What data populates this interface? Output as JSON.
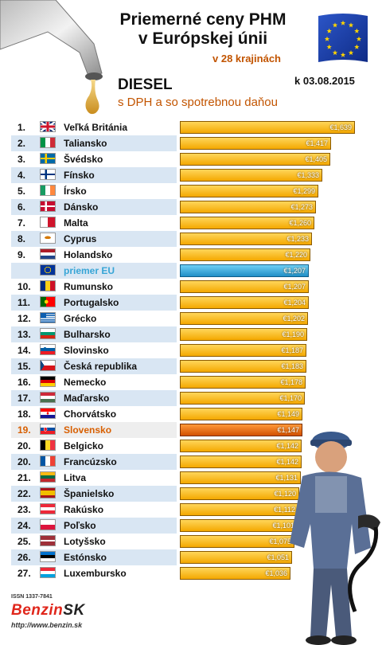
{
  "header": {
    "title_line1": "Priemerné ceny PHM",
    "title_line2": "v Európskej únii",
    "subtitle": "v 28 krajinách",
    "fuel": "DIESEL",
    "tax_note": "s DPH a so spotrebnou daňou",
    "date": "k 03.08.2015"
  },
  "footer": {
    "issn": "ISSN 1337-7841",
    "logo_part1": "Benzin",
    "logo_part2": "SK",
    "url": "http://www.benzin.sk"
  },
  "chart_data": {
    "type": "bar",
    "orientation": "horizontal",
    "currency": "€",
    "xlim": [
      0,
      1.7
    ],
    "rows": [
      {
        "rank": "1.",
        "name": "Veľká Británia",
        "value": 1.639,
        "label": "€1,639",
        "flag": "gb"
      },
      {
        "rank": "2.",
        "name": "Taliansko",
        "value": 1.417,
        "label": "€1,417",
        "flag": "it"
      },
      {
        "rank": "3.",
        "name": "Švédsko",
        "value": 1.405,
        "label": "€1,405",
        "flag": "se"
      },
      {
        "rank": "4.",
        "name": "Fínsko",
        "value": 1.333,
        "label": "€1,333",
        "flag": "fi"
      },
      {
        "rank": "5.",
        "name": "Írsko",
        "value": 1.299,
        "label": "€1,299",
        "flag": "ie"
      },
      {
        "rank": "6.",
        "name": "Dánsko",
        "value": 1.273,
        "label": "€1,273",
        "flag": "dk"
      },
      {
        "rank": "7.",
        "name": "Malta",
        "value": 1.26,
        "label": "€1,260",
        "flag": "mt"
      },
      {
        "rank": "8.",
        "name": "Cyprus",
        "value": 1.233,
        "label": "€1,233",
        "flag": "cy"
      },
      {
        "rank": "9.",
        "name": "Holandsko",
        "value": 1.22,
        "label": "€1,220",
        "flag": "nl"
      },
      {
        "rank": "",
        "name": "priemer EU",
        "value": 1.207,
        "label": "€1,207",
        "flag": "eu",
        "highlight": "eu"
      },
      {
        "rank": "10.",
        "name": "Rumunsko",
        "value": 1.207,
        "label": "€1,207",
        "flag": "ro"
      },
      {
        "rank": "11.",
        "name": "Portugalsko",
        "value": 1.204,
        "label": "€1,204",
        "flag": "pt"
      },
      {
        "rank": "12.",
        "name": "Grécko",
        "value": 1.202,
        "label": "€1,202",
        "flag": "gr"
      },
      {
        "rank": "13.",
        "name": "Bulharsko",
        "value": 1.19,
        "label": "€1,190",
        "flag": "bg"
      },
      {
        "rank": "14.",
        "name": "Slovinsko",
        "value": 1.187,
        "label": "€1,187",
        "flag": "si"
      },
      {
        "rank": "15.",
        "name": "Česká republika",
        "value": 1.183,
        "label": "€1,183",
        "flag": "cz"
      },
      {
        "rank": "16.",
        "name": "Nemecko",
        "value": 1.178,
        "label": "€1,178",
        "flag": "de"
      },
      {
        "rank": "17.",
        "name": "Maďarsko",
        "value": 1.17,
        "label": "€1,170",
        "flag": "hu"
      },
      {
        "rank": "18.",
        "name": "Chorvátsko",
        "value": 1.149,
        "label": "€1,149",
        "flag": "hr"
      },
      {
        "rank": "19.",
        "name": "Slovensko",
        "value": 1.147,
        "label": "€1,147",
        "flag": "sk",
        "highlight": "sk"
      },
      {
        "rank": "20.",
        "name": "Belgicko",
        "value": 1.142,
        "label": "€1,142",
        "flag": "be"
      },
      {
        "rank": "20.",
        "name": "Francúzsko",
        "value": 1.142,
        "label": "€1,142",
        "flag": "fr"
      },
      {
        "rank": "21.",
        "name": "Litva",
        "value": 1.131,
        "label": "€1,131",
        "flag": "lt"
      },
      {
        "rank": "22.",
        "name": "Španielsko",
        "value": 1.12,
        "label": "€1,120",
        "flag": "es"
      },
      {
        "rank": "23.",
        "name": "Rakúsko",
        "value": 1.112,
        "label": "€1,112",
        "flag": "at"
      },
      {
        "rank": "24.",
        "name": "Poľsko",
        "value": 1.101,
        "label": "€1,101",
        "flag": "pl"
      },
      {
        "rank": "25.",
        "name": "Lotyšsko",
        "value": 1.075,
        "label": "€1,075",
        "flag": "lv"
      },
      {
        "rank": "26.",
        "name": "Estónsko",
        "value": 1.051,
        "label": "€1,051",
        "flag": "ee"
      },
      {
        "rank": "27.",
        "name": "Luxembursko",
        "value": 1.036,
        "label": "€1,036",
        "flag": "lu"
      }
    ]
  },
  "colors": {
    "bar": "#f4a800",
    "bar_eu": "#1f8fc7",
    "bar_sk": "#d25000",
    "row_shade": "#d9e6f3",
    "accent_text": "#c25400",
    "eu_text": "#37a5d6"
  }
}
